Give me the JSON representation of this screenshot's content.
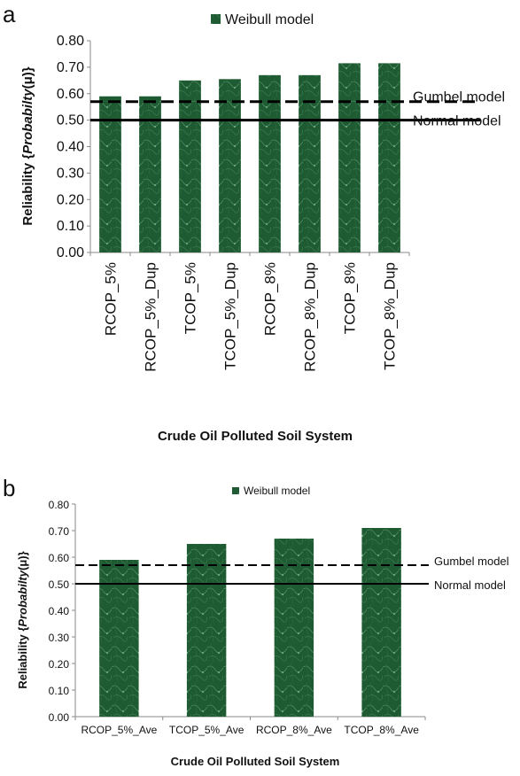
{
  "panels": [
    "a",
    "b"
  ],
  "colors": {
    "bar": "#1e5a32",
    "bar_light": "#3f7d52",
    "reference_line": "#000000"
  },
  "chart_data": [
    {
      "type": "bar",
      "panel": "a",
      "categories": [
        "RCOP_5%",
        "RCOP_5%_Dup",
        "TCOP_5%",
        "TCOP_5%_Dup",
        "RCOP_8%",
        "RCOP_8%_Dup",
        "TCOP_8%",
        "TCOP_8%_Dup"
      ],
      "series": [
        {
          "name": "Weibull model",
          "values": [
            0.59,
            0.59,
            0.65,
            0.655,
            0.67,
            0.67,
            0.715,
            0.715
          ]
        }
      ],
      "reference_lines": [
        {
          "name": "Gumbel model",
          "value": 0.57,
          "style": "dashed"
        },
        {
          "name": "Normal model",
          "value": 0.5,
          "style": "solid"
        }
      ],
      "xlabel": "Crude Oil Polluted Soil System",
      "ylabel": {
        "prefix": "Reliability {",
        "italic": "Probabilty",
        "suffix": "(μ)}"
      },
      "ylim": [
        0,
        0.8
      ],
      "yticks": [
        "0.00",
        "0.10",
        "0.20",
        "0.30",
        "0.40",
        "0.50",
        "0.60",
        "0.70",
        "0.80"
      ],
      "legend_position": "top-center",
      "grid": false
    },
    {
      "type": "bar",
      "panel": "b",
      "categories": [
        "RCOP_5%_Ave",
        "TCOP_5%_Ave",
        "RCOP_8%_Ave",
        "TCOP_8%_Ave"
      ],
      "series": [
        {
          "name": "Weibull model",
          "values": [
            0.59,
            0.65,
            0.67,
            0.71
          ]
        }
      ],
      "reference_lines": [
        {
          "name": "Gumbel model",
          "value": 0.57,
          "style": "dashed"
        },
        {
          "name": "Normal model",
          "value": 0.5,
          "style": "solid"
        }
      ],
      "xlabel": "Crude Oil Polluted Soil System",
      "ylabel": {
        "prefix": "Reliability {",
        "italic": "Probabilty",
        "suffix": "(μ)}"
      },
      "ylim": [
        0,
        0.8
      ],
      "yticks": [
        "0.00",
        "0.10",
        "0.20",
        "0.30",
        "0.40",
        "0.50",
        "0.60",
        "0.70",
        "0.80"
      ],
      "legend_position": "top-center",
      "grid": false
    }
  ]
}
